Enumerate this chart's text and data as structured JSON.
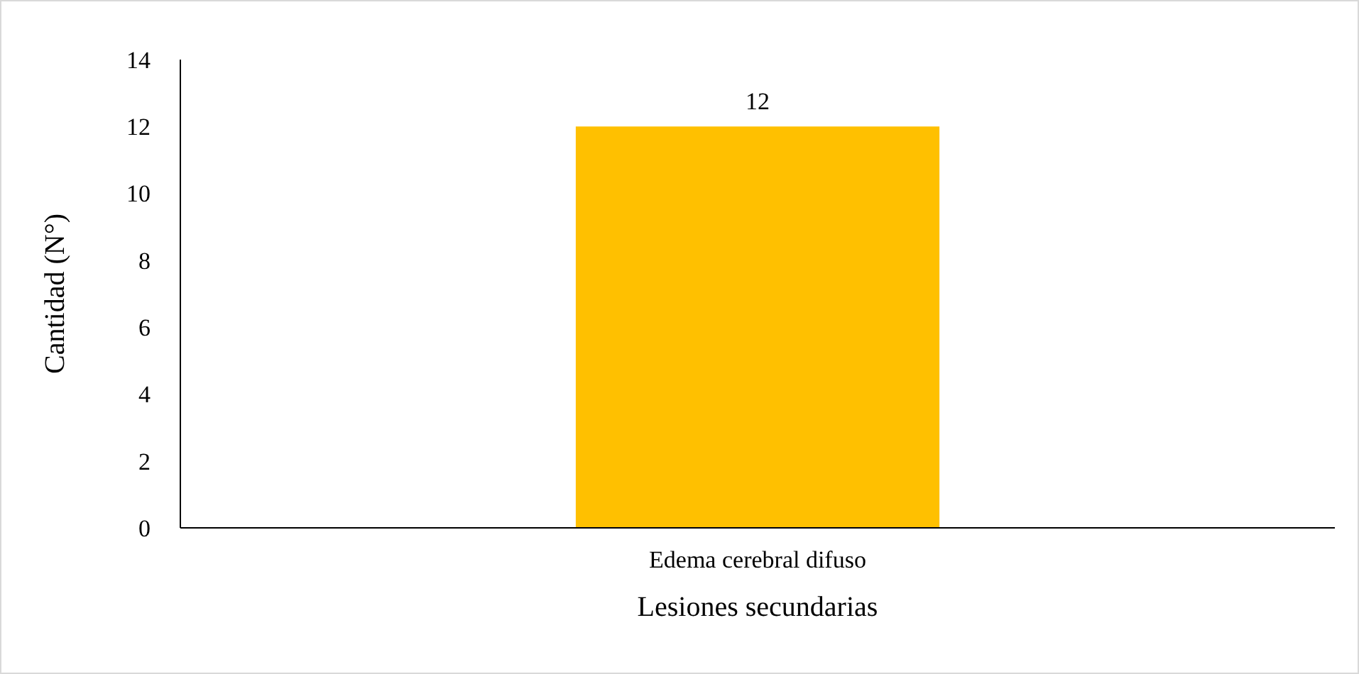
{
  "chart_data": {
    "type": "bar",
    "categories": [
      "Edema cerebral difuso"
    ],
    "values": [
      12
    ],
    "color": "#ffc000",
    "xlabel": "Lesiones secundarias",
    "ylabel": "Cantidad (N°)",
    "ylim": [
      0,
      14
    ],
    "yticks": [
      0,
      2,
      4,
      6,
      8,
      10,
      12,
      14
    ],
    "data_labels": true,
    "grid": false
  }
}
